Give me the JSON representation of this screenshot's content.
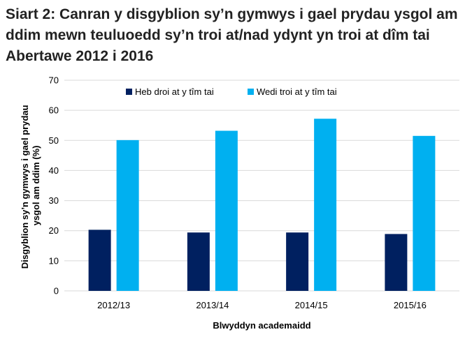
{
  "chart_data": {
    "type": "bar",
    "title": "Siart 2: Canran y disgyblion sy’n gymwys i gael prydau ysgol am ddim mewn teuluoedd sy’n troi at/nad ydynt yn troi at dîm tai Abertawe 2012 i 2016",
    "xlabel": "Blwyddyn academaidd",
    "ylabel": "Disgyblion sy’n gymwys i gael prydau ysgol am ddim (%)",
    "ylabel_lines": [
      "Disgyblion sy’n gymwys i gael prydau",
      "ysgol am ddim (%)"
    ],
    "categories": [
      "2012/13",
      "2013/14",
      "2014/15",
      "2015/16"
    ],
    "series": [
      {
        "name": "Heb droi at y tîm tai",
        "color": "#002060",
        "values": [
          20.3,
          19.4,
          19.4,
          18.9
        ]
      },
      {
        "name": "Wedi troi at y tîm tai",
        "color": "#00B0F0",
        "values": [
          50.1,
          53.2,
          57.2,
          51.5
        ]
      }
    ],
    "ylim": [
      0,
      70
    ],
    "yticks": [
      0,
      10,
      20,
      30,
      40,
      50,
      60,
      70
    ],
    "grid": true,
    "legend_position": "top"
  }
}
